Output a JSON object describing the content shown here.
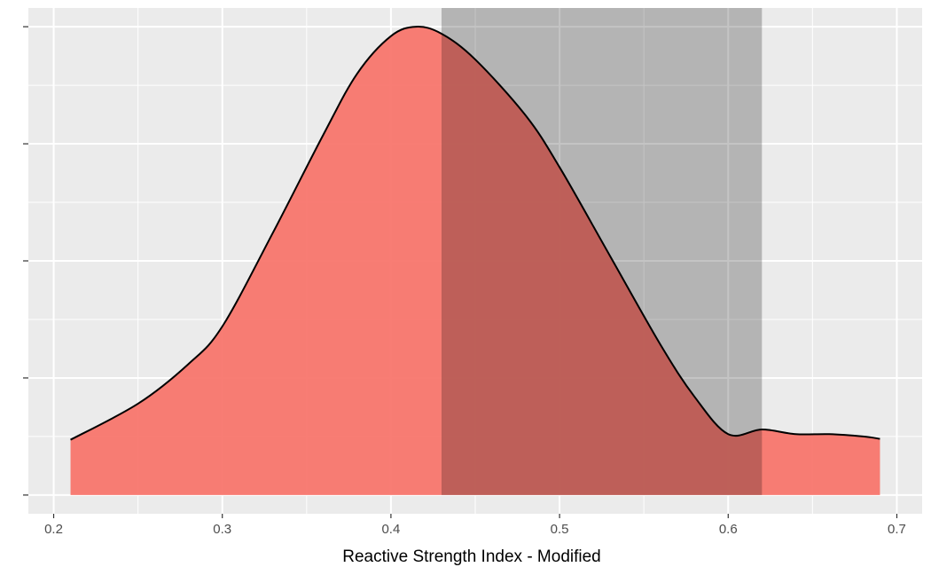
{
  "chart_data": {
    "type": "area",
    "xlabel": "Reactive Strength Index - Modified",
    "ylabel": "",
    "xlim": [
      0.185,
      0.715
    ],
    "ylim": [
      -0.04,
      1.04
    ],
    "x_ticks": [
      0.2,
      0.3,
      0.4,
      0.5,
      0.6,
      0.7
    ],
    "x_tick_labels": [
      "0.2",
      "0.3",
      "0.4",
      "0.5",
      "0.6",
      "0.7"
    ],
    "y_ticks": [
      0,
      0.25,
      0.5,
      0.75,
      1.0
    ],
    "y_tick_labels": [
      "",
      "",
      "",
      "",
      ""
    ],
    "grid": true,
    "density_curve": {
      "x": [
        0.21,
        0.25,
        0.28,
        0.3,
        0.33,
        0.36,
        0.38,
        0.4,
        0.415,
        0.43,
        0.45,
        0.48,
        0.5,
        0.53,
        0.56,
        0.58,
        0.6,
        0.62,
        0.64,
        0.66,
        0.68,
        0.69
      ],
      "y": [
        0.118,
        0.195,
        0.28,
        0.36,
        0.56,
        0.77,
        0.9,
        0.98,
        1.0,
        0.985,
        0.93,
        0.81,
        0.7,
        0.51,
        0.32,
        0.21,
        0.13,
        0.14,
        0.13,
        0.13,
        0.125,
        0.12
      ],
      "fill": "#f8766d",
      "opacity": 0.95,
      "line_color": "#000000"
    },
    "highlight_band": {
      "x_range": [
        0.43,
        0.62
      ],
      "color": "#b0b0b0",
      "opacity": 0.75
    },
    "panel_background": "#ebebeb",
    "grid_color": "#ffffff"
  }
}
